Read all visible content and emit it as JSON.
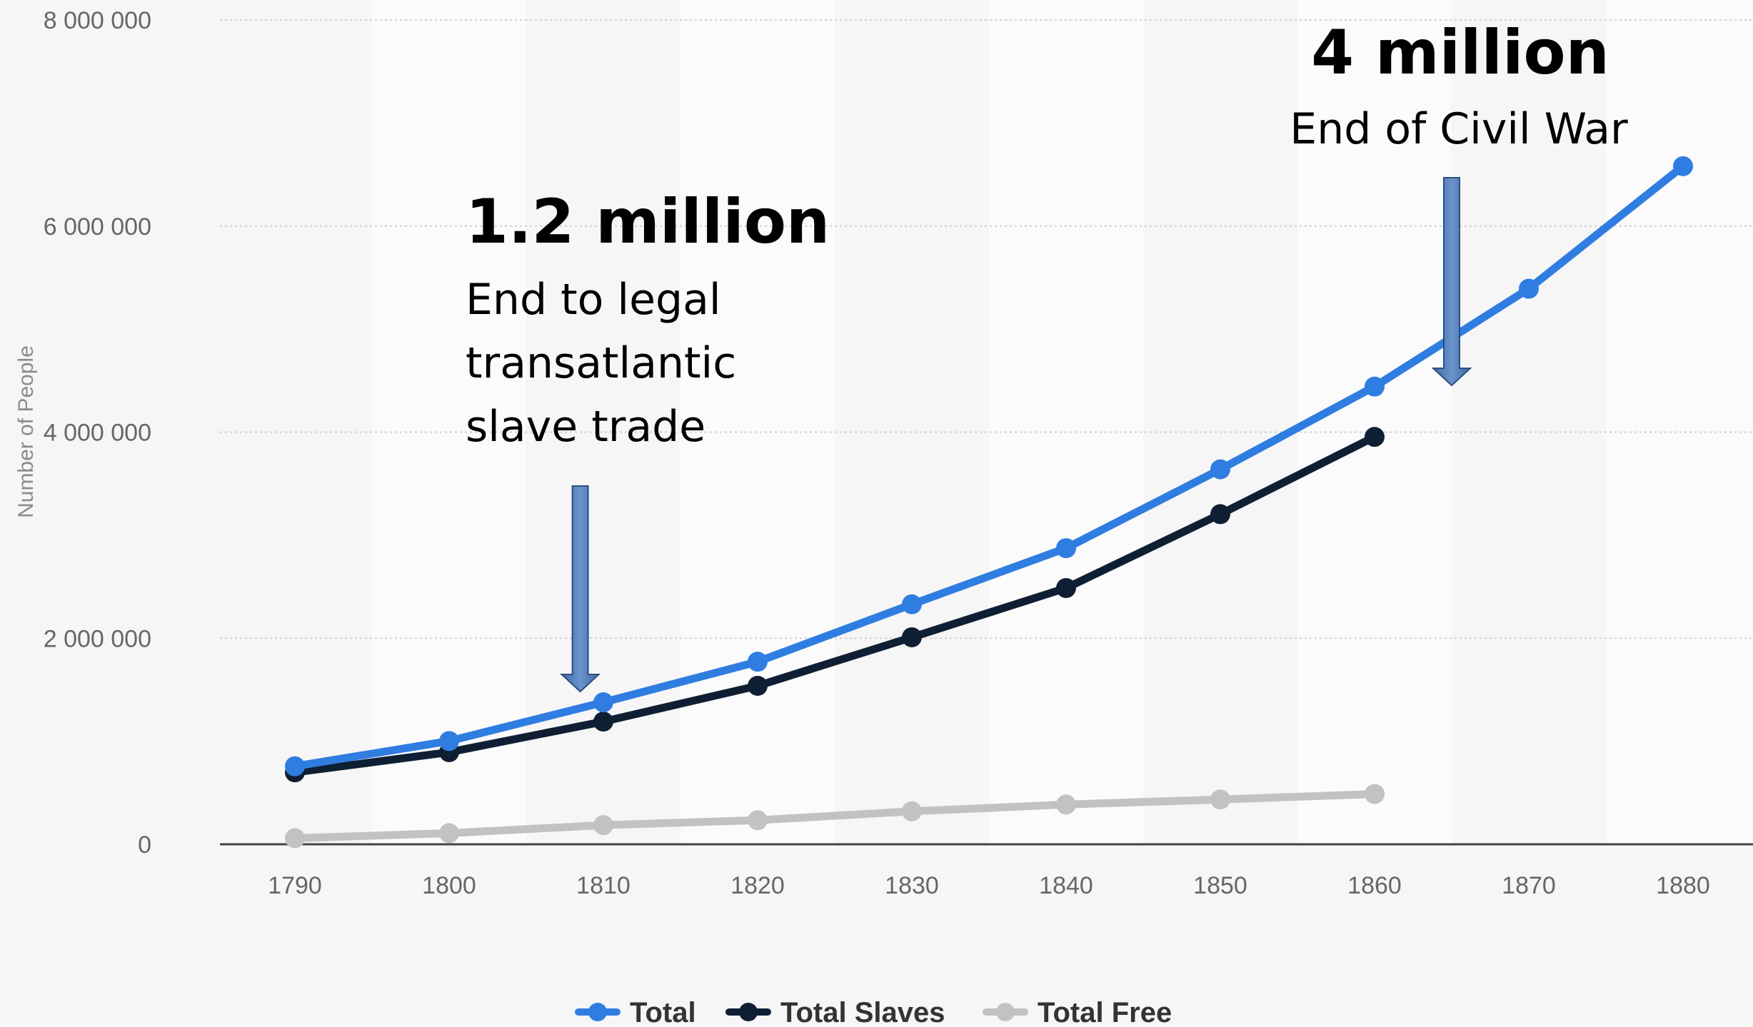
{
  "chart_data": {
    "type": "line",
    "x": [
      1790,
      1800,
      1810,
      1820,
      1830,
      1840,
      1850,
      1860,
      1870,
      1880
    ],
    "x_tick_labels": [
      "1790",
      "1800",
      "1810",
      "1820",
      "1830",
      "1840",
      "1850",
      "1860",
      "1870",
      "1880"
    ],
    "ylim": [
      0,
      8000000
    ],
    "y_ticks": [
      0,
      2000000,
      4000000,
      6000000,
      8000000
    ],
    "y_tick_labels": [
      "0",
      "2 000 000",
      "4 000 000",
      "6 000 000",
      "8 000 000"
    ],
    "ylabel": "Number of People",
    "xlabel": "",
    "grid": "horizontal dotted",
    "legend_position": "bottom-center",
    "series": [
      {
        "name": "Total",
        "color": "#2f7de1",
        "values": [
          757000,
          1002000,
          1378000,
          1772000,
          2329000,
          2874000,
          3639000,
          4442000,
          5392000,
          6581000
        ]
      },
      {
        "name": "Total Slaves",
        "color": "#0f1f33",
        "values": [
          698000,
          894000,
          1191000,
          1538000,
          2009000,
          2487000,
          3204000,
          3954000,
          null,
          null
        ]
      },
      {
        "name": "Total Free",
        "color": "#c2c2c2",
        "values": [
          59000,
          108000,
          186000,
          234000,
          320000,
          386000,
          435000,
          488000,
          null,
          null
        ]
      }
    ],
    "annotations": [
      {
        "id": "trade",
        "value": "1.2 million",
        "lines": [
          "End to legal",
          "transatlantic",
          "slave trade"
        ],
        "x": 1808.5
      },
      {
        "id": "civil_war",
        "value": "4 million",
        "lines": [
          "End of Civil War"
        ],
        "x": 1865
      }
    ]
  }
}
